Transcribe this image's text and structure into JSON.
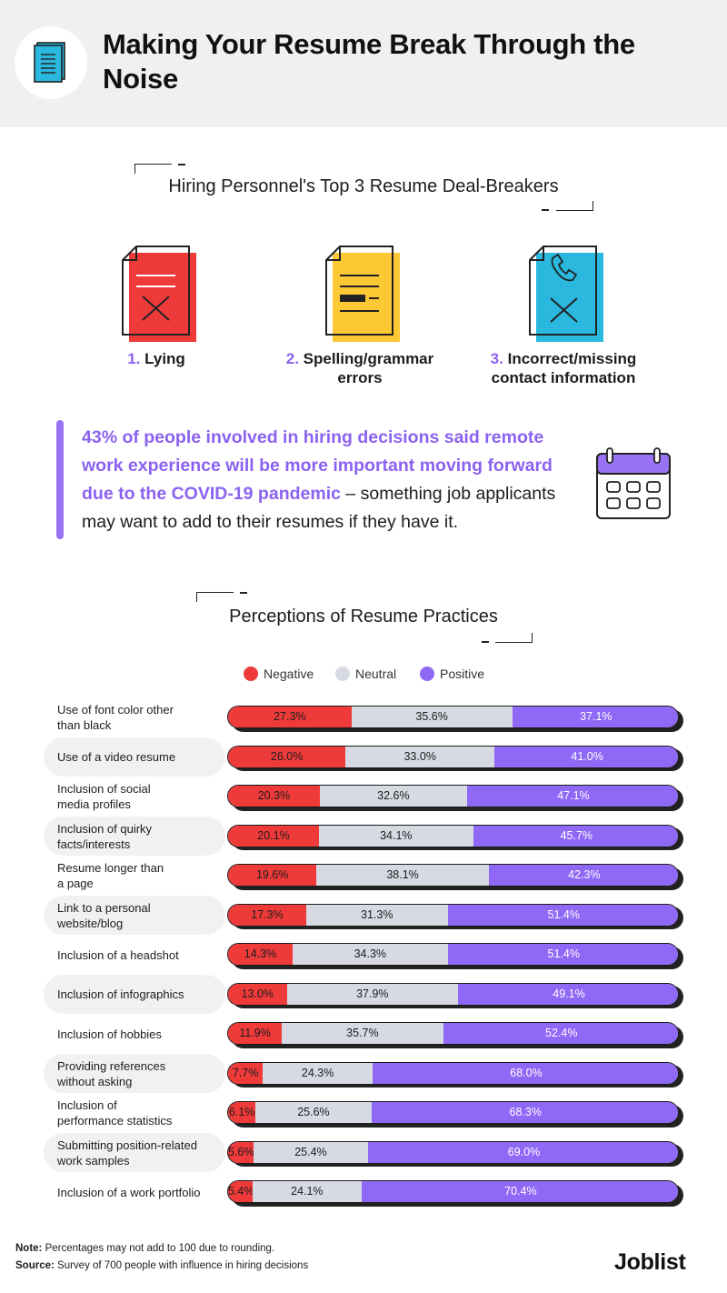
{
  "header": {
    "title": "Making Your Resume Break Through the Noise",
    "icon": "document-icon"
  },
  "dealbreakers": {
    "title": "Hiring Personnel's Top 3 Resume Deal-Breakers",
    "items": [
      {
        "num": "1.",
        "label": "Lying",
        "icon": "crossed-document-icon",
        "color": "#ef3a3a"
      },
      {
        "num": "2.",
        "label": "Spelling/grammar errors",
        "icon": "redacted-document-icon",
        "color": "#fcc935"
      },
      {
        "num": "3.",
        "label": "Incorrect/missing contact information",
        "icon": "phone-document-icon",
        "color": "#2ab8de"
      }
    ]
  },
  "callout": {
    "highlight": "43% of people involved in hiring decisions said remote work experience will be more important moving forward due to the COVID-19 pandemic",
    "rest": " – something job applicants may want to add to their resumes if they have it.",
    "icon": "calendar-icon"
  },
  "chart_data": {
    "type": "bar",
    "stacked": true,
    "orientation": "horizontal",
    "title": "Perceptions of Resume Practices",
    "legend_position": "top",
    "categories": [
      "Use of font color other than black",
      "Use of a video resume",
      "Inclusion of social media profiles",
      "Inclusion of quirky facts/interests",
      "Resume longer than a page",
      "Link to a personal website/blog",
      "Inclusion of a headshot",
      "Inclusion of infographics",
      "Inclusion of hobbies",
      "Providing references without asking",
      "Inclusion of performance statistics",
      "Submitting position-related work samples",
      "Inclusion of a work portfolio"
    ],
    "series": [
      {
        "name": "Negative",
        "color": "#ef3a3a",
        "values": [
          27.3,
          26.0,
          20.3,
          20.1,
          19.6,
          17.3,
          14.3,
          13.0,
          11.9,
          7.7,
          6.1,
          5.6,
          5.4
        ]
      },
      {
        "name": "Neutral",
        "color": "#d7dae3",
        "values": [
          35.6,
          33.0,
          32.6,
          34.1,
          38.1,
          31.3,
          34.3,
          37.9,
          35.7,
          24.3,
          25.6,
          25.4,
          24.1
        ]
      },
      {
        "name": "Positive",
        "color": "#9068f6",
        "values": [
          37.1,
          41.0,
          47.1,
          45.7,
          42.3,
          51.4,
          51.4,
          49.1,
          52.4,
          68.0,
          68.3,
          69.0,
          70.4
        ]
      }
    ],
    "display_labels": [
      [
        "Use of font color other",
        "than black"
      ],
      [
        "Use of a video resume"
      ],
      [
        "Inclusion of social",
        "media profiles"
      ],
      [
        "Inclusion of quirky",
        "facts/interests"
      ],
      [
        "Resume longer than",
        "a page"
      ],
      [
        "Link to a personal",
        "website/blog"
      ],
      [
        "Inclusion of a headshot"
      ],
      [
        "Inclusion of infographics"
      ],
      [
        "Inclusion of hobbies"
      ],
      [
        "Providing references",
        "without asking"
      ],
      [
        "Inclusion of",
        "performance statistics"
      ],
      [
        "Submitting position-related",
        "work samples"
      ],
      [
        "Inclusion of a work portfolio"
      ]
    ],
    "shaded_rows": [
      1,
      3,
      5,
      7,
      9,
      11
    ]
  },
  "footer": {
    "note_label": "Note:",
    "note_text": " Percentages may not add to 100 due to rounding.",
    "source_label": "Source:",
    "source_text": " Survey of 700 people with influence in hiring decisions",
    "logo": "Joblist"
  }
}
